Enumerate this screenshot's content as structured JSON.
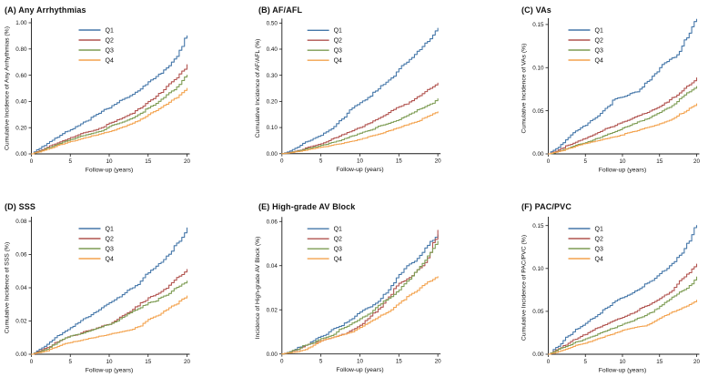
{
  "figure": {
    "background": "#ffffff",
    "axis_color": "#1a1a1a",
    "text_color": "#111111",
    "palette": {
      "Q1": "#4577a9",
      "Q2": "#b1534f",
      "Q3": "#7d9c53",
      "Q4": "#f3a24d"
    }
  },
  "follow_up_years": [
    0,
    1,
    2,
    3,
    4,
    5,
    6,
    7,
    8,
    9,
    10,
    11,
    12,
    13,
    14,
    15,
    16,
    17,
    18,
    19,
    20
  ],
  "chart_data": [
    {
      "type": "line",
      "panel": "A",
      "title": "(A) Any Arrhythmias",
      "xlabel": "Follow-up (years)",
      "ylabel": "Cumulative Incidence of Any Arrhythmias (%)",
      "xlim": [
        0,
        20
      ],
      "xticks": [
        0,
        5,
        10,
        15,
        20
      ],
      "ylim": [
        0,
        1.0
      ],
      "yticks": [
        0,
        0.2,
        0.4,
        0.6,
        0.8,
        1.0
      ],
      "ytick_labels": [
        "0.00",
        "0.20",
        "0.40",
        "0.60",
        "0.80",
        "1.00"
      ],
      "grid": false,
      "legend_position": "upper-left-inside",
      "series": [
        {
          "name": "Q1",
          "color": "#4577a9",
          "values": [
            0,
            0.04,
            0.08,
            0.12,
            0.155,
            0.185,
            0.215,
            0.25,
            0.29,
            0.325,
            0.35,
            0.39,
            0.425,
            0.455,
            0.495,
            0.55,
            0.59,
            0.64,
            0.7,
            0.79,
            0.9
          ]
        },
        {
          "name": "Q2",
          "color": "#b1534f",
          "values": [
            0,
            0.025,
            0.05,
            0.075,
            0.1,
            0.125,
            0.145,
            0.165,
            0.18,
            0.2,
            0.235,
            0.26,
            0.285,
            0.31,
            0.35,
            0.4,
            0.44,
            0.49,
            0.55,
            0.61,
            0.68
          ]
        },
        {
          "name": "Q3",
          "color": "#7d9c53",
          "values": [
            0,
            0.02,
            0.045,
            0.065,
            0.09,
            0.11,
            0.13,
            0.145,
            0.16,
            0.175,
            0.21,
            0.23,
            0.25,
            0.275,
            0.31,
            0.35,
            0.385,
            0.43,
            0.48,
            0.53,
            0.6
          ]
        },
        {
          "name": "Q4",
          "color": "#f3a24d",
          "values": [
            0,
            0.015,
            0.035,
            0.055,
            0.075,
            0.095,
            0.11,
            0.125,
            0.14,
            0.155,
            0.17,
            0.19,
            0.21,
            0.235,
            0.265,
            0.3,
            0.33,
            0.37,
            0.41,
            0.45,
            0.5
          ]
        }
      ]
    },
    {
      "type": "line",
      "panel": "B",
      "title": "(B) AF/AFL",
      "xlabel": "Follow-up (years)",
      "ylabel": "Cumulative Incidence of AF/AFL (%)",
      "xlim": [
        0,
        20
      ],
      "xticks": [
        0,
        5,
        10,
        15,
        20
      ],
      "ylim": [
        0,
        0.5
      ],
      "yticks": [
        0,
        0.1,
        0.2,
        0.3,
        0.4,
        0.5
      ],
      "ytick_labels": [
        "0.00",
        "0.10",
        "0.20",
        "0.30",
        "0.40",
        "0.50"
      ],
      "grid": false,
      "legend_position": "upper-left-inside",
      "series": [
        {
          "name": "Q1",
          "color": "#4577a9",
          "values": [
            0,
            0.01,
            0.025,
            0.045,
            0.058,
            0.07,
            0.09,
            0.115,
            0.14,
            0.175,
            0.195,
            0.215,
            0.24,
            0.265,
            0.29,
            0.325,
            0.35,
            0.38,
            0.41,
            0.44,
            0.48
          ]
        },
        {
          "name": "Q2",
          "color": "#b1534f",
          "values": [
            0,
            0.005,
            0.012,
            0.022,
            0.03,
            0.038,
            0.05,
            0.062,
            0.075,
            0.088,
            0.1,
            0.115,
            0.13,
            0.145,
            0.165,
            0.18,
            0.19,
            0.21,
            0.23,
            0.25,
            0.27
          ]
        },
        {
          "name": "Q3",
          "color": "#7d9c53",
          "values": [
            0,
            0.004,
            0.01,
            0.018,
            0.025,
            0.032,
            0.04,
            0.048,
            0.058,
            0.068,
            0.078,
            0.088,
            0.1,
            0.11,
            0.12,
            0.13,
            0.145,
            0.16,
            0.175,
            0.19,
            0.21
          ]
        },
        {
          "name": "Q4",
          "color": "#f3a24d",
          "values": [
            0,
            0.003,
            0.008,
            0.013,
            0.019,
            0.025,
            0.03,
            0.036,
            0.042,
            0.048,
            0.055,
            0.065,
            0.072,
            0.08,
            0.09,
            0.1,
            0.11,
            0.12,
            0.135,
            0.147,
            0.16
          ]
        }
      ]
    },
    {
      "type": "line",
      "panel": "C",
      "title": "(C) VAs",
      "xlabel": "Follow-up (years)",
      "ylabel": "Cumulative Incidence of VAs (%)",
      "xlim": [
        0,
        20
      ],
      "xticks": [
        0,
        5,
        10,
        15,
        20
      ],
      "ylim": [
        0,
        0.152
      ],
      "yticks": [
        0,
        0.05,
        0.1,
        0.15
      ],
      "ytick_labels": [
        "0.00",
        "0.05",
        "0.10",
        "0.15"
      ],
      "grid": false,
      "legend_position": "upper-left-inside",
      "series": [
        {
          "name": "Q1",
          "color": "#4577a9",
          "values": [
            0,
            0.006,
            0.013,
            0.022,
            0.028,
            0.033,
            0.04,
            0.047,
            0.055,
            0.064,
            0.066,
            0.07,
            0.072,
            0.082,
            0.09,
            0.1,
            0.107,
            0.112,
            0.125,
            0.14,
            0.156
          ]
        },
        {
          "name": "Q2",
          "color": "#b1534f",
          "values": [
            0,
            0.003,
            0.007,
            0.011,
            0.015,
            0.018,
            0.022,
            0.026,
            0.03,
            0.033,
            0.037,
            0.04,
            0.044,
            0.047,
            0.051,
            0.055,
            0.06,
            0.066,
            0.073,
            0.08,
            0.088
          ]
        },
        {
          "name": "Q3",
          "color": "#7d9c53",
          "values": [
            0,
            0.002,
            0.005,
            0.008,
            0.011,
            0.013,
            0.016,
            0.019,
            0.023,
            0.026,
            0.03,
            0.033,
            0.037,
            0.04,
            0.044,
            0.048,
            0.053,
            0.058,
            0.066,
            0.072,
            0.078
          ]
        },
        {
          "name": "Q4",
          "color": "#f3a24d",
          "values": [
            0,
            0.002,
            0.004,
            0.007,
            0.01,
            0.012,
            0.014,
            0.016,
            0.018,
            0.02,
            0.022,
            0.025,
            0.027,
            0.03,
            0.032,
            0.035,
            0.038,
            0.042,
            0.047,
            0.053,
            0.058
          ]
        }
      ]
    },
    {
      "type": "line",
      "panel": "D",
      "title": "(D) SSS",
      "xlabel": "Follow-up (years)",
      "ylabel": "Cumulative Incidence of SSS (%)",
      "xlim": [
        0,
        20
      ],
      "xticks": [
        0,
        5,
        10,
        15,
        20
      ],
      "ylim": [
        0,
        0.08
      ],
      "yticks": [
        0,
        0.02,
        0.04,
        0.06,
        0.08
      ],
      "ytick_labels": [
        "0.00",
        "0.02",
        "0.04",
        "0.06",
        "0.08"
      ],
      "grid": false,
      "legend_position": "upper-left-inside",
      "series": [
        {
          "name": "Q1",
          "color": "#4577a9",
          "values": [
            0,
            0.003,
            0.006,
            0.01,
            0.013,
            0.016,
            0.019,
            0.022,
            0.025,
            0.028,
            0.031,
            0.034,
            0.037,
            0.04,
            0.044,
            0.049,
            0.053,
            0.057,
            0.062,
            0.068,
            0.076
          ]
        },
        {
          "name": "Q2",
          "color": "#b1534f",
          "values": [
            0,
            0.002,
            0.004,
            0.007,
            0.009,
            0.011,
            0.012,
            0.014,
            0.015,
            0.017,
            0.018,
            0.021,
            0.024,
            0.027,
            0.031,
            0.034,
            0.036,
            0.039,
            0.043,
            0.047,
            0.051
          ]
        },
        {
          "name": "Q3",
          "color": "#7d9c53",
          "values": [
            0,
            0.0015,
            0.003,
            0.006,
            0.009,
            0.011,
            0.012,
            0.0135,
            0.015,
            0.0165,
            0.018,
            0.02,
            0.023,
            0.026,
            0.028,
            0.031,
            0.032,
            0.035,
            0.038,
            0.041,
            0.044
          ]
        },
        {
          "name": "Q4",
          "color": "#f3a24d",
          "values": [
            0,
            0.001,
            0.002,
            0.004,
            0.006,
            0.007,
            0.008,
            0.009,
            0.01,
            0.011,
            0.012,
            0.013,
            0.014,
            0.015,
            0.017,
            0.021,
            0.023,
            0.026,
            0.029,
            0.032,
            0.035
          ]
        }
      ]
    },
    {
      "type": "line",
      "panel": "E",
      "title": "(E) High-grade AV Block",
      "xlabel": "Follow-up (years)",
      "ylabel": "Incidence of High-grade AV Block (%)",
      "xlim": [
        0,
        20
      ],
      "xticks": [
        0,
        5,
        10,
        15,
        20
      ],
      "ylim": [
        0,
        0.06
      ],
      "yticks": [
        0,
        0.02,
        0.04,
        0.06
      ],
      "ytick_labels": [
        "0.00",
        "0.02",
        "0.04",
        "0.06"
      ],
      "grid": false,
      "legend_position": "upper-left-inside",
      "series": [
        {
          "name": "Q1",
          "color": "#4577a9",
          "values": [
            0,
            0.001,
            0.003,
            0.004,
            0.006,
            0.008,
            0.01,
            0.012,
            0.014,
            0.016,
            0.019,
            0.021,
            0.023,
            0.027,
            0.031,
            0.036,
            0.04,
            0.042,
            0.046,
            0.051,
            0.054
          ]
        },
        {
          "name": "Q2",
          "color": "#b1534f",
          "values": [
            0,
            0.001,
            0.002,
            0.004,
            0.005,
            0.006,
            0.007,
            0.008,
            0.009,
            0.011,
            0.013,
            0.016,
            0.019,
            0.023,
            0.027,
            0.032,
            0.034,
            0.037,
            0.04,
            0.046,
            0.056
          ]
        },
        {
          "name": "Q3",
          "color": "#7d9c53",
          "values": [
            0,
            0.001,
            0.002,
            0.004,
            0.005,
            0.007,
            0.008,
            0.01,
            0.012,
            0.014,
            0.016,
            0.018,
            0.021,
            0.024,
            0.026,
            0.029,
            0.033,
            0.037,
            0.041,
            0.046,
            0.051
          ]
        },
        {
          "name": "Q4",
          "color": "#f3a24d",
          "values": [
            0,
            0.0005,
            0.001,
            0.002,
            0.004,
            0.006,
            0.007,
            0.008,
            0.009,
            0.01,
            0.012,
            0.014,
            0.016,
            0.018,
            0.02,
            0.023,
            0.026,
            0.028,
            0.031,
            0.033,
            0.035
          ]
        }
      ]
    },
    {
      "type": "line",
      "panel": "F",
      "title": "(F) PAC/PVC",
      "xlabel": "Follow-up (years)",
      "ylabel": "Cumulative Incidence of PAC/PVC (%)",
      "xlim": [
        0,
        20
      ],
      "xticks": [
        0,
        5,
        10,
        15,
        20
      ],
      "ylim": [
        0,
        0.155
      ],
      "yticks": [
        0,
        0.05,
        0.1,
        0.15
      ],
      "ytick_labels": [
        "0.00",
        "0.05",
        "0.10",
        "0.15"
      ],
      "grid": false,
      "legend_position": "upper-left-inside",
      "series": [
        {
          "name": "Q1",
          "color": "#4577a9",
          "values": [
            0,
            0.008,
            0.016,
            0.023,
            0.03,
            0.036,
            0.042,
            0.048,
            0.055,
            0.062,
            0.066,
            0.07,
            0.075,
            0.082,
            0.086,
            0.094,
            0.1,
            0.108,
            0.118,
            0.132,
            0.15
          ]
        },
        {
          "name": "Q2",
          "color": "#b1534f",
          "values": [
            0,
            0.005,
            0.01,
            0.015,
            0.019,
            0.023,
            0.028,
            0.032,
            0.036,
            0.04,
            0.043,
            0.047,
            0.051,
            0.056,
            0.06,
            0.065,
            0.07,
            0.078,
            0.088,
            0.095,
            0.105
          ]
        },
        {
          "name": "Q3",
          "color": "#7d9c53",
          "values": [
            0,
            0.004,
            0.008,
            0.011,
            0.015,
            0.018,
            0.021,
            0.025,
            0.028,
            0.031,
            0.035,
            0.038,
            0.042,
            0.045,
            0.049,
            0.056,
            0.062,
            0.068,
            0.074,
            0.08,
            0.09
          ]
        },
        {
          "name": "Q4",
          "color": "#f3a24d",
          "values": [
            0,
            0.002,
            0.005,
            0.008,
            0.011,
            0.013,
            0.016,
            0.019,
            0.022,
            0.025,
            0.028,
            0.03,
            0.032,
            0.033,
            0.037,
            0.042,
            0.046,
            0.05,
            0.054,
            0.058,
            0.063
          ]
        }
      ]
    }
  ]
}
